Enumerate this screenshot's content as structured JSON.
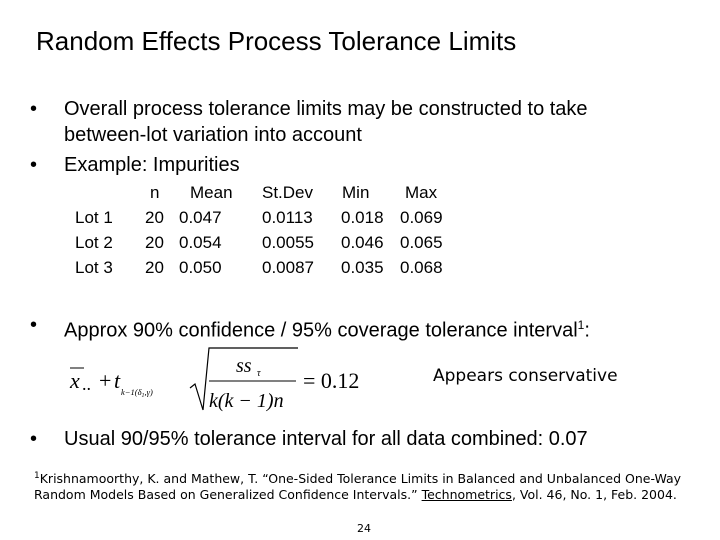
{
  "slide": {
    "title": "Random Effects Process Tolerance Limits",
    "bullets": [
      "Overall process tolerance limits may be constructed to take",
      "between-lot variation into account",
      "Example: Impurities",
      "Approx 90% confidence / 95% coverage tolerance interval",
      "1",
      ":",
      "Usual 90/95% tolerance interval for all data combined: 0.07"
    ],
    "bullet_symbol": "•",
    "table": {
      "headers": [
        "n",
        "Mean",
        "St.Dev",
        "Min",
        "Max"
      ],
      "rows": [
        {
          "label": "Lot 1",
          "n": "20",
          "mean": "0.047",
          "stdev": "0.0113",
          "min": "0.018",
          "max": "0.069"
        },
        {
          "label": "Lot 2",
          "n": "20",
          "mean": "0.054",
          "stdev": "0.0055",
          "min": "0.046",
          "max": "0.065"
        },
        {
          "label": "Lot 3",
          "n": "20",
          "mean": "0.050",
          "stdev": "0.0087",
          "min": "0.035",
          "max": "0.068"
        }
      ]
    },
    "formula": {
      "xbar": "x",
      "dots": "..",
      "plus": "+",
      "t": "t",
      "t_sub": "k−1(δ",
      "t_sub2": "1",
      "t_sub3": ",γ)",
      "numerator": "ss",
      "numerator_sub": "τ",
      "denominator": "k(k − 1)n",
      "result": "= 0.12"
    },
    "note": "Appears conservative",
    "footnote": {
      "marker": "1",
      "text_before": "Krishnamoorthy, K. and Mathew, T. “One-Sided Tolerance Limits in Balanced and Unbalanced One-Way Random Models Based on Generalized Confidence Intervals.” ",
      "journal": "Technometrics",
      "text_after": ", Vol. 46, No. 1, Feb. 2004."
    },
    "page_number": "24"
  }
}
